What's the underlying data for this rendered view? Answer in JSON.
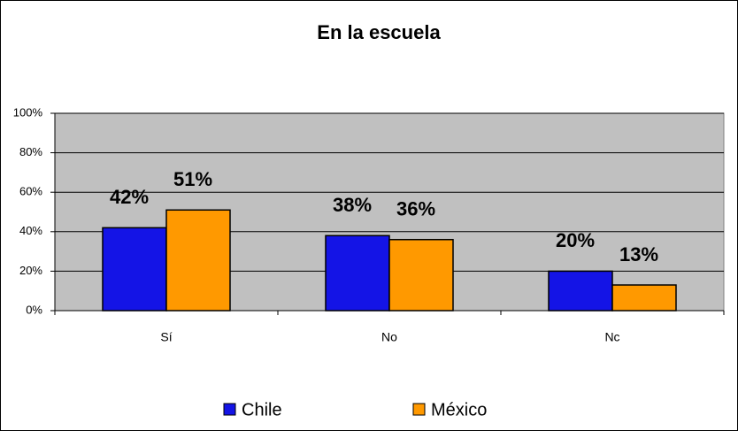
{
  "chart_data": {
    "type": "bar",
    "title": "En la escuela",
    "categories": [
      "Sí",
      "No",
      "Nc"
    ],
    "series": [
      {
        "name": "Chile",
        "color": "#1414e6",
        "values": [
          42,
          38,
          20
        ],
        "value_labels": [
          "42%",
          "38%",
          "20%"
        ]
      },
      {
        "name": "México",
        "color": "#ff9900",
        "values": [
          51,
          36,
          13
        ],
        "value_labels": [
          "51%",
          "36%",
          "13%"
        ]
      }
    ],
    "ylim": [
      0,
      100
    ],
    "yticks": [
      {
        "value": 0,
        "label": "0%"
      },
      {
        "value": 20,
        "label": "20%"
      },
      {
        "value": 40,
        "label": "40%"
      },
      {
        "value": 60,
        "label": "60%"
      },
      {
        "value": 80,
        "label": "80%"
      },
      {
        "value": 100,
        "label": "100%"
      }
    ],
    "grid": true,
    "legend": "bottom"
  }
}
